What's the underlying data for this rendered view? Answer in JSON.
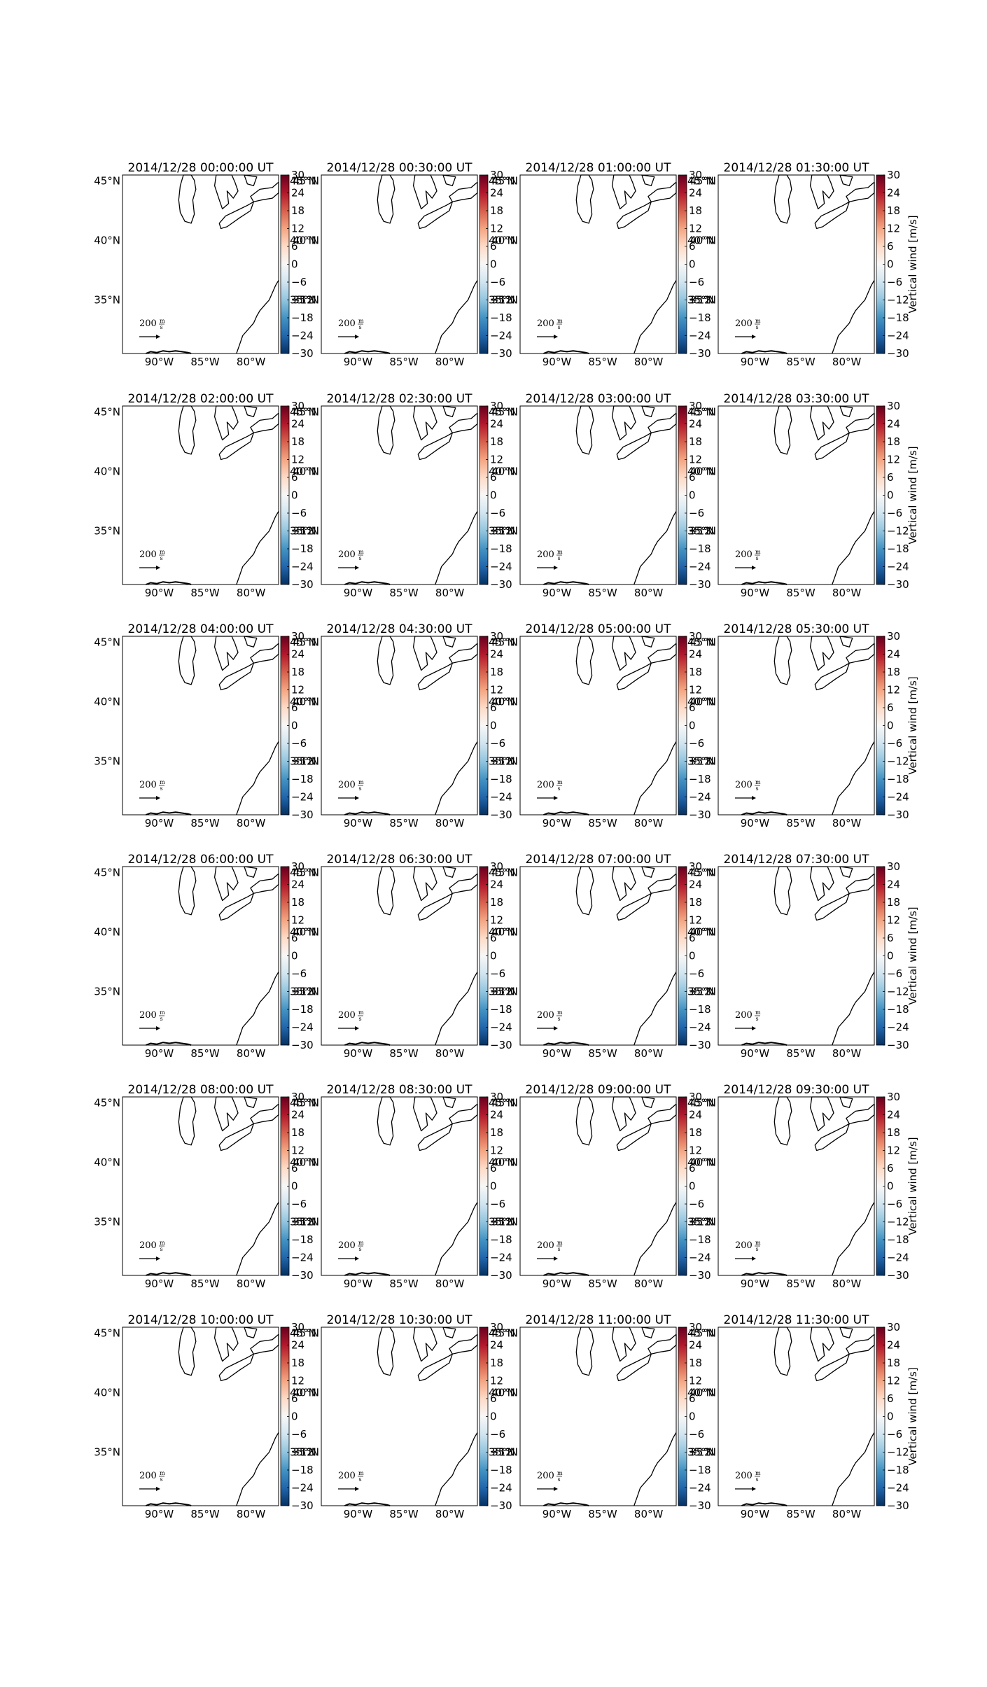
{
  "figure": {
    "colorbar_ticks": [
      30,
      24,
      18,
      12,
      6,
      0,
      -6,
      -12,
      -18,
      -24,
      -30
    ],
    "colorbar_label": "Vertical wind [m/s]",
    "colorbar_range": [
      -30,
      30
    ],
    "colormap": [
      "#053061",
      "#2166ac",
      "#4393c3",
      "#92c5de",
      "#d1e5f0",
      "#f7f7f7",
      "#fddbc7",
      "#f4a582",
      "#d6604d",
      "#b2182b",
      "#67001f"
    ],
    "lat_ticks": [
      "45°N",
      "40°N",
      "35°N"
    ],
    "lon_ticks": [
      "90°W",
      "85°W",
      "80°W"
    ],
    "lon_range": [
      -94,
      -77
    ],
    "lat_range": [
      30.5,
      45.5
    ],
    "lat_values": [
      45,
      40,
      35
    ],
    "lon_values": [
      -90,
      -85,
      -80
    ],
    "arrow_label": "200",
    "arrow_unit_num": "m",
    "arrow_unit_den": "s"
  },
  "chart_data": {
    "type": "heatmap",
    "title": "",
    "panels": [
      {
        "title": "2014/12/28 00:00:00 UT"
      },
      {
        "title": "2014/12/28 00:30:00 UT"
      },
      {
        "title": "2014/12/28 01:00:00 UT"
      },
      {
        "title": "2014/12/28 01:30:00 UT"
      },
      {
        "title": "2014/12/28 02:00:00 UT"
      },
      {
        "title": "2014/12/28 02:30:00 UT"
      },
      {
        "title": "2014/12/28 03:00:00 UT"
      },
      {
        "title": "2014/12/28 03:30:00 UT"
      },
      {
        "title": "2014/12/28 04:00:00 UT"
      },
      {
        "title": "2014/12/28 04:30:00 UT"
      },
      {
        "title": "2014/12/28 05:00:00 UT"
      },
      {
        "title": "2014/12/28 05:30:00 UT"
      },
      {
        "title": "2014/12/28 06:00:00 UT"
      },
      {
        "title": "2014/12/28 06:30:00 UT"
      },
      {
        "title": "2014/12/28 07:00:00 UT"
      },
      {
        "title": "2014/12/28 07:30:00 UT"
      },
      {
        "title": "2014/12/28 08:00:00 UT"
      },
      {
        "title": "2014/12/28 08:30:00 UT"
      },
      {
        "title": "2014/12/28 09:00:00 UT"
      },
      {
        "title": "2014/12/28 09:30:00 UT"
      },
      {
        "title": "2014/12/28 10:00:00 UT"
      },
      {
        "title": "2014/12/28 10:30:00 UT"
      },
      {
        "title": "2014/12/28 11:00:00 UT"
      },
      {
        "title": "2014/12/28 11:30:00 UT"
      }
    ]
  }
}
